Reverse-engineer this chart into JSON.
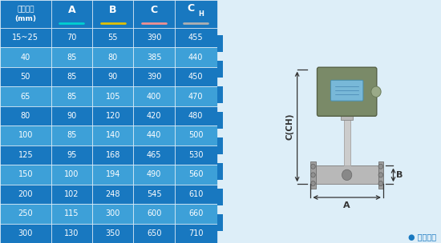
{
  "table_headers": [
    "仪表口径\n(mm)",
    "A",
    "B",
    "C",
    "CH"
  ],
  "underline_colors": [
    "#00d0d0",
    "#e0c000",
    "#f09090",
    "#b0b0b0"
  ],
  "rows": [
    [
      "15~25",
      "70",
      "55",
      "390",
      "455"
    ],
    [
      "40",
      "85",
      "80",
      "385",
      "440"
    ],
    [
      "50",
      "85",
      "90",
      "390",
      "450"
    ],
    [
      "65",
      "85",
      "105",
      "400",
      "470"
    ],
    [
      "80",
      "90",
      "120",
      "420",
      "480"
    ],
    [
      "100",
      "85",
      "140",
      "440",
      "500"
    ],
    [
      "125",
      "95",
      "168",
      "465",
      "530"
    ],
    [
      "150",
      "100",
      "194",
      "490",
      "560"
    ],
    [
      "200",
      "102",
      "248",
      "545",
      "610"
    ],
    [
      "250",
      "115",
      "300",
      "600",
      "660"
    ],
    [
      "300",
      "130",
      "350",
      "650",
      "710"
    ]
  ],
  "dark_row_indices": [
    0,
    2,
    4,
    6,
    8,
    10
  ],
  "dark_bg": "#1878c0",
  "light_bg": "#3da0d8",
  "header_bg": "#1878c0",
  "fig_bg": "#ddeef8",
  "diagram_bg": "#ddeef8",
  "note_text": "● 常规仪表",
  "note_color": "#1878c0",
  "blue_strip_color": "#1878c0",
  "dim_color": "#333333"
}
